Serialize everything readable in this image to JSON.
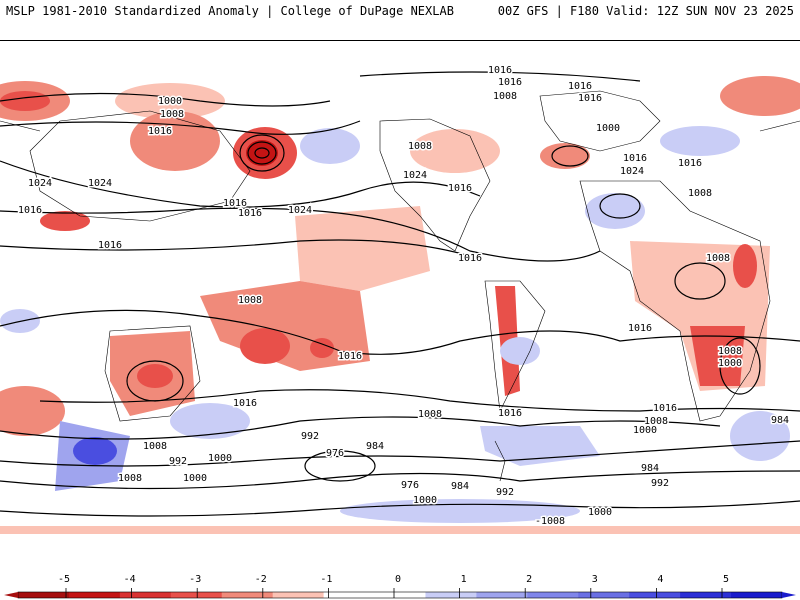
{
  "header": {
    "title_left": "MSLP 1981-2010 Standardized Anomaly | College of DuPage NEXLAB",
    "title_right": "00Z GFS | F180 Valid: 12Z SUN NOV 23 2025"
  },
  "colors": {
    "neg3": "#c41414",
    "neg2": "#e8504a",
    "neg1": "#f08a7a",
    "neg0": "#fbc2b4",
    "pos0": "#c9cdf6",
    "pos1": "#9fa4ee",
    "pos2": "#6a6fe4",
    "pos3": "#2c2fd6",
    "contour": "#000000",
    "coast": "#000000"
  },
  "colorbar": {
    "ticks": [
      "-5",
      "-4",
      "-3",
      "-2",
      "-1",
      "0",
      "1",
      "2",
      "3",
      "4",
      "5"
    ],
    "colors": [
      "#a60f0f",
      "#c41414",
      "#d93232",
      "#e8504a",
      "#f08a7a",
      "#fbc2b4",
      "#ffffff",
      "#ffffff",
      "#c9cdf6",
      "#9fa4ee",
      "#8086ea",
      "#6a6fe4",
      "#4a4ee0",
      "#2c2fd6",
      "#1a1ccc"
    ]
  },
  "isobar_labels": [
    "1016",
    "1016",
    "1008",
    "1016",
    "1016",
    "1000",
    "1008",
    "1016",
    "1008",
    "1024",
    "1024",
    "1016",
    "1016",
    "1024",
    "1016",
    "1024",
    "1016",
    "1000",
    "1016",
    "1024",
    "1016",
    "1008",
    "1016",
    "1008",
    "1016",
    "1008",
    "1016",
    "1008",
    "1016",
    "1016",
    "1008",
    "1000",
    "1016",
    "992",
    "1000",
    "1008",
    "992",
    "1000",
    "1008",
    "976",
    "984",
    "976",
    "984",
    "992",
    "1000",
    "-1008",
    "1000",
    "1016",
    "1008",
    "1000",
    "984",
    "992",
    "984"
  ]
}
